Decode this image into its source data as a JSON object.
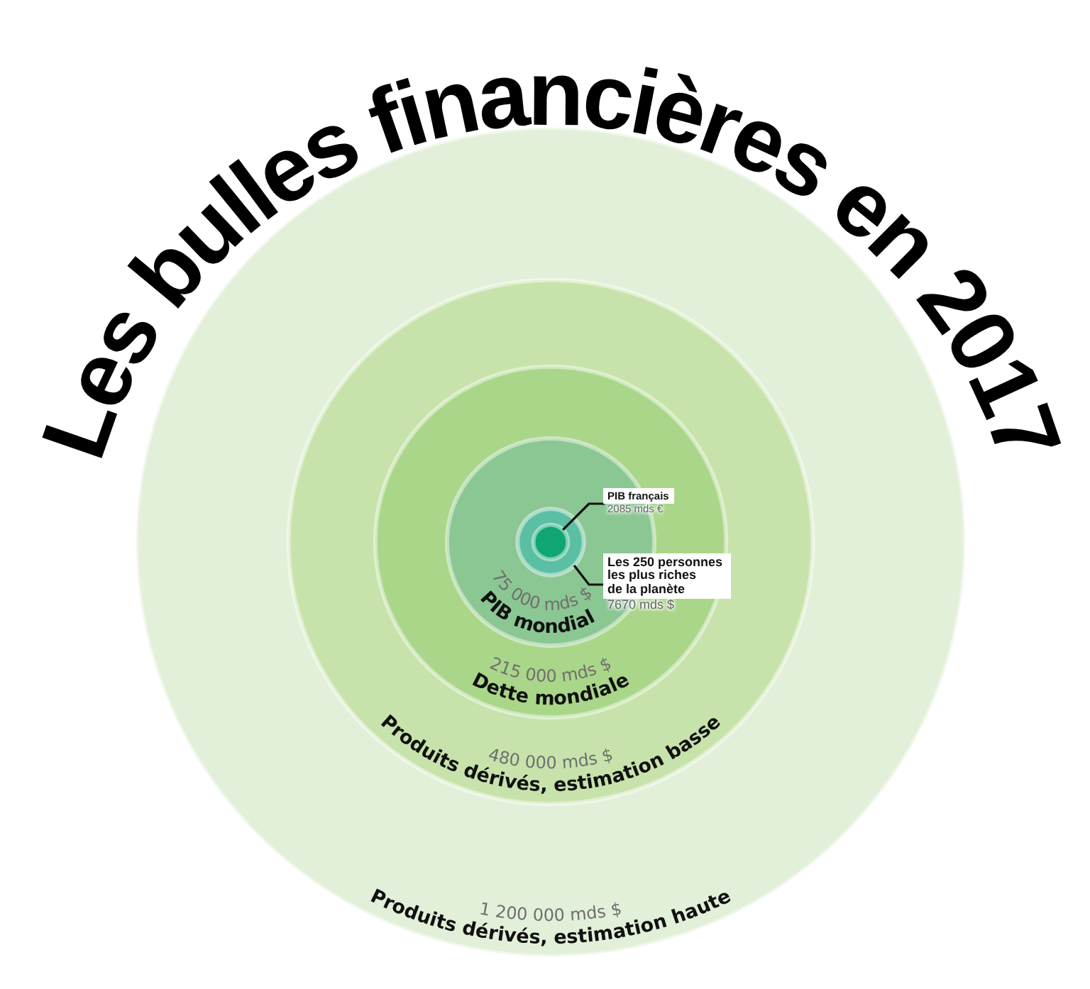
{
  "chart_data": {
    "type": "other",
    "title": "Les bulles financières en 2017",
    "categories": [
      "Produits dérivés, estimation haute",
      "Produits dérivés, estimation basse",
      "Dette mondiale",
      "PIB mondial",
      "Les 250 personnes les plus riches de la planète",
      "PIB français"
    ],
    "values": [
      1200000,
      480000,
      215000,
      75000,
      7670,
      2085
    ],
    "value_labels": [
      "1 200 000 mds $",
      "480 000 mds $",
      "215 000 mds $",
      "75 000 mds $",
      "7670 mds $",
      "2085 mds €"
    ],
    "colors": [
      "#e3f0d9",
      "#c7e3ab",
      "#aad68a",
      "#8bc793",
      "#5bbfa3",
      "#0fa674"
    ]
  }
}
